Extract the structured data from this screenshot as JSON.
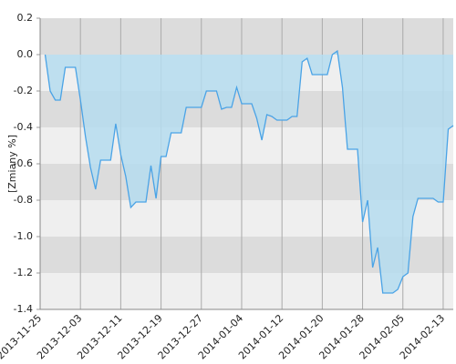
{
  "chart_data": {
    "type": "area",
    "y_label": "[Zmiany %]",
    "x": [
      "2013-11-26",
      "2013-11-27",
      "2013-11-28",
      "2013-11-29",
      "2013-11-30",
      "2013-12-01",
      "2013-12-02",
      "2013-12-03",
      "2013-12-04",
      "2013-12-05",
      "2013-12-06",
      "2013-12-07",
      "2013-12-08",
      "2013-12-09",
      "2013-12-10",
      "2013-12-11",
      "2013-12-12",
      "2013-12-13",
      "2013-12-14",
      "2013-12-15",
      "2013-12-16",
      "2013-12-17",
      "2013-12-18",
      "2013-12-19",
      "2013-12-20",
      "2013-12-21",
      "2013-12-22",
      "2013-12-23",
      "2013-12-24",
      "2013-12-25",
      "2013-12-26",
      "2013-12-27",
      "2013-12-28",
      "2013-12-29",
      "2013-12-30",
      "2013-12-31",
      "2014-01-01",
      "2014-01-02",
      "2014-01-03",
      "2014-01-04",
      "2014-01-05",
      "2014-01-06",
      "2014-01-07",
      "2014-01-08",
      "2014-01-09",
      "2014-01-10",
      "2014-01-11",
      "2014-01-12",
      "2014-01-13",
      "2014-01-14",
      "2014-01-15",
      "2014-01-16",
      "2014-01-17",
      "2014-01-18",
      "2014-01-19",
      "2014-01-20",
      "2014-01-21",
      "2014-01-22",
      "2014-01-23",
      "2014-01-24",
      "2014-01-25",
      "2014-01-26",
      "2014-01-27",
      "2014-01-28",
      "2014-01-29",
      "2014-01-30",
      "2014-01-31",
      "2014-02-01",
      "2014-02-02",
      "2014-02-03",
      "2014-02-04",
      "2014-02-05",
      "2014-02-06",
      "2014-02-07",
      "2014-02-08",
      "2014-02-09",
      "2014-02-10",
      "2014-02-11",
      "2014-02-12",
      "2014-02-13",
      "2014-02-14",
      "2014-02-15"
    ],
    "values": [
      0.0,
      -0.2,
      -0.25,
      -0.25,
      -0.07,
      -0.07,
      -0.07,
      -0.25,
      -0.45,
      -0.62,
      -0.74,
      -0.58,
      -0.58,
      -0.58,
      -0.38,
      -0.55,
      -0.67,
      -0.84,
      -0.81,
      -0.81,
      -0.81,
      -0.61,
      -0.79,
      -0.56,
      -0.56,
      -0.43,
      -0.43,
      -0.43,
      -0.29,
      -0.29,
      -0.29,
      -0.29,
      -0.2,
      -0.2,
      -0.2,
      -0.3,
      -0.29,
      -0.29,
      -0.18,
      -0.27,
      -0.27,
      -0.27,
      -0.35,
      -0.47,
      -0.33,
      -0.34,
      -0.36,
      -0.36,
      -0.36,
      -0.34,
      -0.34,
      -0.04,
      -0.02,
      -0.11,
      -0.11,
      -0.11,
      -0.11,
      0.0,
      0.02,
      -0.18,
      -0.52,
      -0.52,
      -0.52,
      -0.92,
      -0.8,
      -1.17,
      -1.06,
      -1.31,
      -1.31,
      -1.31,
      -1.29,
      -1.22,
      -1.2,
      -0.89,
      -0.79,
      -0.79,
      -0.79,
      -0.79,
      -0.81,
      -0.81,
      -0.41,
      -0.39
    ],
    "color": "#4aa3e6",
    "fill_color": "#b5dcef",
    "band_colors": [
      "#dcdcdc",
      "#efefef"
    ],
    "xlim": [
      "2013-11-25",
      "2014-02-15"
    ],
    "xticks": [
      "2013-11-25",
      "2013-12-03",
      "2013-12-11",
      "2013-12-19",
      "2013-12-27",
      "2014-01-04",
      "2014-01-12",
      "2014-01-20",
      "2014-01-28",
      "2014-02-05",
      "2014-02-13"
    ],
    "ylim": [
      -1.4,
      0.2
    ],
    "yticks": [
      0.2,
      {
        "value": 0,
        "label": "0.0"
      },
      -0.2,
      -0.4,
      -0.6,
      -0.8,
      {
        "value": -1,
        "label": "-1.0"
      },
      -1.2,
      -1.4
    ],
    "grid": true
  }
}
